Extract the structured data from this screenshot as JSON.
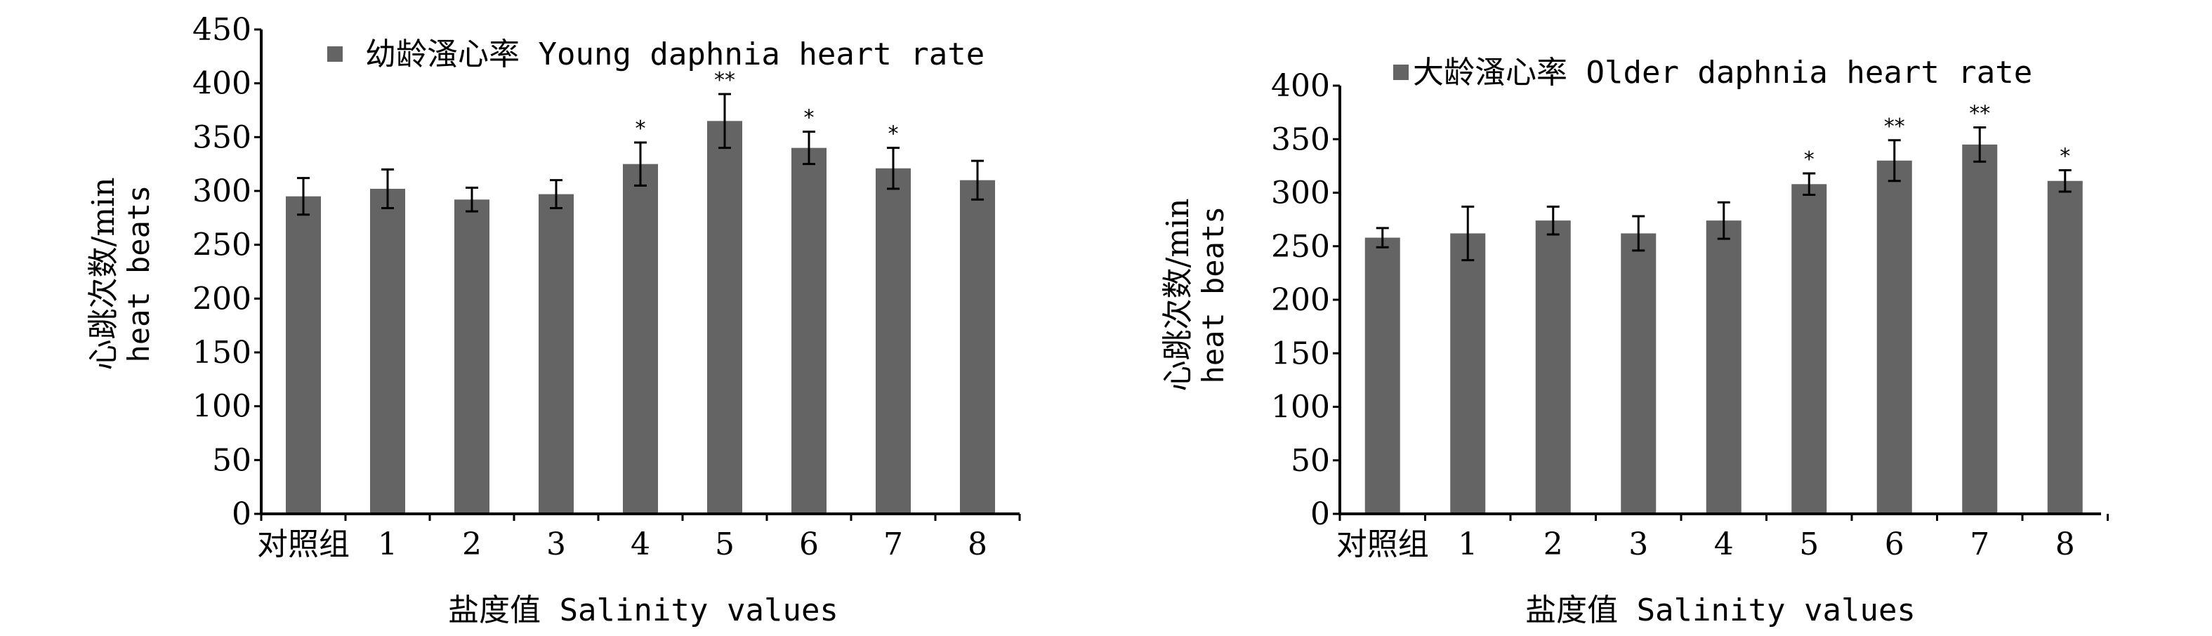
{
  "chart_data": [
    {
      "type": "bar",
      "legend": "幼龄溞心率 Young daphnia heart rate",
      "ylabel_cn": "心跳次数/min",
      "ylabel_en": "heat beats",
      "xlabel": "盐度值 Salinity values",
      "categories": [
        "对照组",
        "1",
        "2",
        "3",
        "4",
        "5",
        "6",
        "7",
        "8"
      ],
      "values": [
        295,
        302,
        292,
        297,
        325,
        365,
        340,
        321,
        310
      ],
      "errors": [
        17,
        18,
        11,
        13,
        20,
        25,
        15,
        19,
        18
      ],
      "significance": [
        "",
        "",
        "",
        "",
        "*",
        "**",
        "*",
        "*",
        ""
      ],
      "ylim": [
        0,
        450
      ],
      "yticks": [
        0,
        50,
        100,
        150,
        200,
        250,
        300,
        350,
        400,
        450
      ],
      "bar_color": "#646464"
    },
    {
      "type": "bar",
      "legend": "大龄溞心率 Older daphnia heart rate",
      "ylabel_cn": "心跳次数/min",
      "ylabel_en": "heat beats",
      "xlabel": "盐度值 Salinity values",
      "categories": [
        "对照组",
        "1",
        "2",
        "3",
        "4",
        "5",
        "6",
        "7",
        "8"
      ],
      "values": [
        258,
        262,
        274,
        262,
        274,
        308,
        330,
        345,
        311
      ],
      "errors": [
        9,
        25,
        13,
        16,
        17,
        10,
        19,
        16,
        10
      ],
      "significance": [
        "",
        "",
        "",
        "",
        "",
        "*",
        "**",
        "**",
        "*"
      ],
      "ylim": [
        0,
        400
      ],
      "yticks": [
        0,
        50,
        100,
        150,
        200,
        250,
        300,
        350,
        400
      ],
      "bar_color": "#646464"
    }
  ]
}
